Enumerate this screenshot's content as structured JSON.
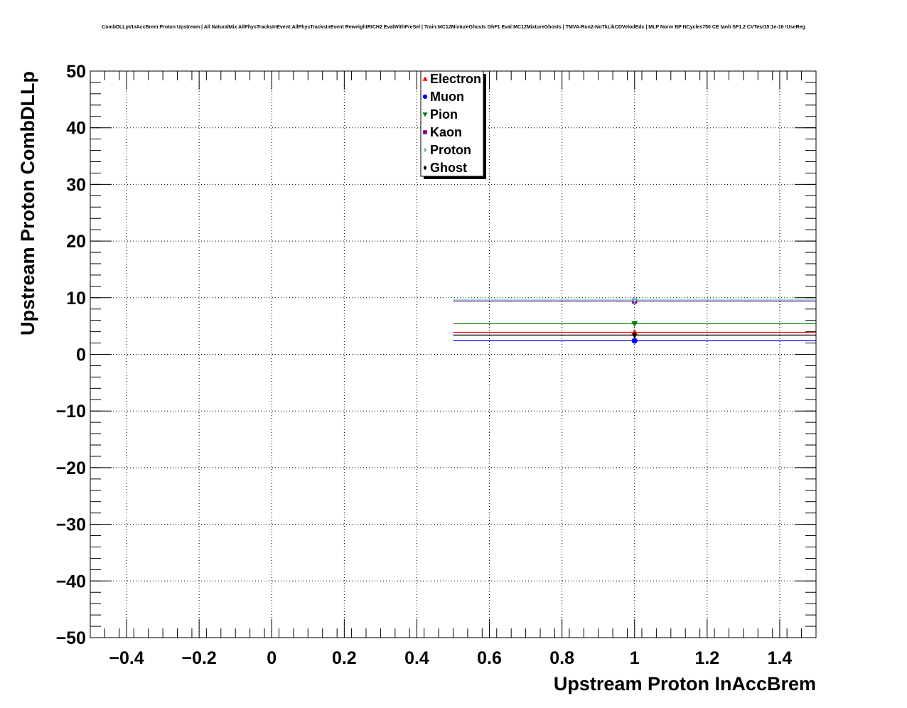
{
  "chart_data": {
    "type": "scatter",
    "title": "CombDLLpVInAccBrem Proton Upstream | All NaturalMix AllPhysTracksInEvent:AllPhysTracksInEvent ReweightRICH2 EvalWithPreSel | Train:MC12MixtureGhosts GhF1 Eval:MC12MixtureGhosts | TMVA-Run2-NoTkLikCDVelodEdx | MLP Norm BP NCycles750 CE tanh SF1.2 CVTest15:1e-16 !UseReg",
    "xlabel": "Upstream Proton InAccBrem",
    "ylabel": "Upstream Proton CombDLLp",
    "xlim": [
      -0.5,
      1.5
    ],
    "ylim": [
      -50,
      50
    ],
    "x_ticks": [
      -0.4,
      -0.2,
      0,
      0.2,
      0.4,
      0.6,
      0.8,
      1,
      1.2,
      1.4
    ],
    "x_tick_labels": [
      "−0.4",
      "−0.2",
      "0",
      "0.2",
      "0.4",
      "0.6",
      "0.8",
      "1",
      "1.2",
      "1.4"
    ],
    "y_ticks": [
      -50,
      -40,
      -30,
      -20,
      -10,
      0,
      10,
      20,
      30,
      40,
      50
    ],
    "y_tick_labels": [
      "−50",
      "−40",
      "−30",
      "−20",
      "−10",
      "0",
      "10",
      "20",
      "30",
      "40",
      "50"
    ],
    "grid": true,
    "legend_position": "top-center",
    "series": [
      {
        "name": "Electron",
        "color": "#ff0000",
        "marker": "triangle-up",
        "x": [
          1
        ],
        "xerr": [
          0.5
        ],
        "y": [
          3.9
        ]
      },
      {
        "name": "Muon",
        "color": "#0000ff",
        "marker": "circle",
        "x": [
          1
        ],
        "xerr": [
          0.5
        ],
        "y": [
          2.4
        ]
      },
      {
        "name": "Pion",
        "color": "#008000",
        "marker": "triangle-down",
        "x": [
          1
        ],
        "xerr": [
          0.5
        ],
        "y": [
          5.4
        ]
      },
      {
        "name": "Kaon",
        "color": "#800080",
        "marker": "square",
        "x": [
          1
        ],
        "xerr": [
          0.5
        ],
        "y": [
          9.4
        ]
      },
      {
        "name": "Proton",
        "color": "#66cccc",
        "marker": "diamond",
        "x": [
          1
        ],
        "xerr": [
          0.5
        ],
        "y": [
          9.6
        ]
      },
      {
        "name": "Ghost",
        "color": "#000000",
        "marker": "diamond",
        "x": [
          1
        ],
        "xerr": [
          0.5
        ],
        "y": [
          3.4
        ]
      }
    ]
  }
}
